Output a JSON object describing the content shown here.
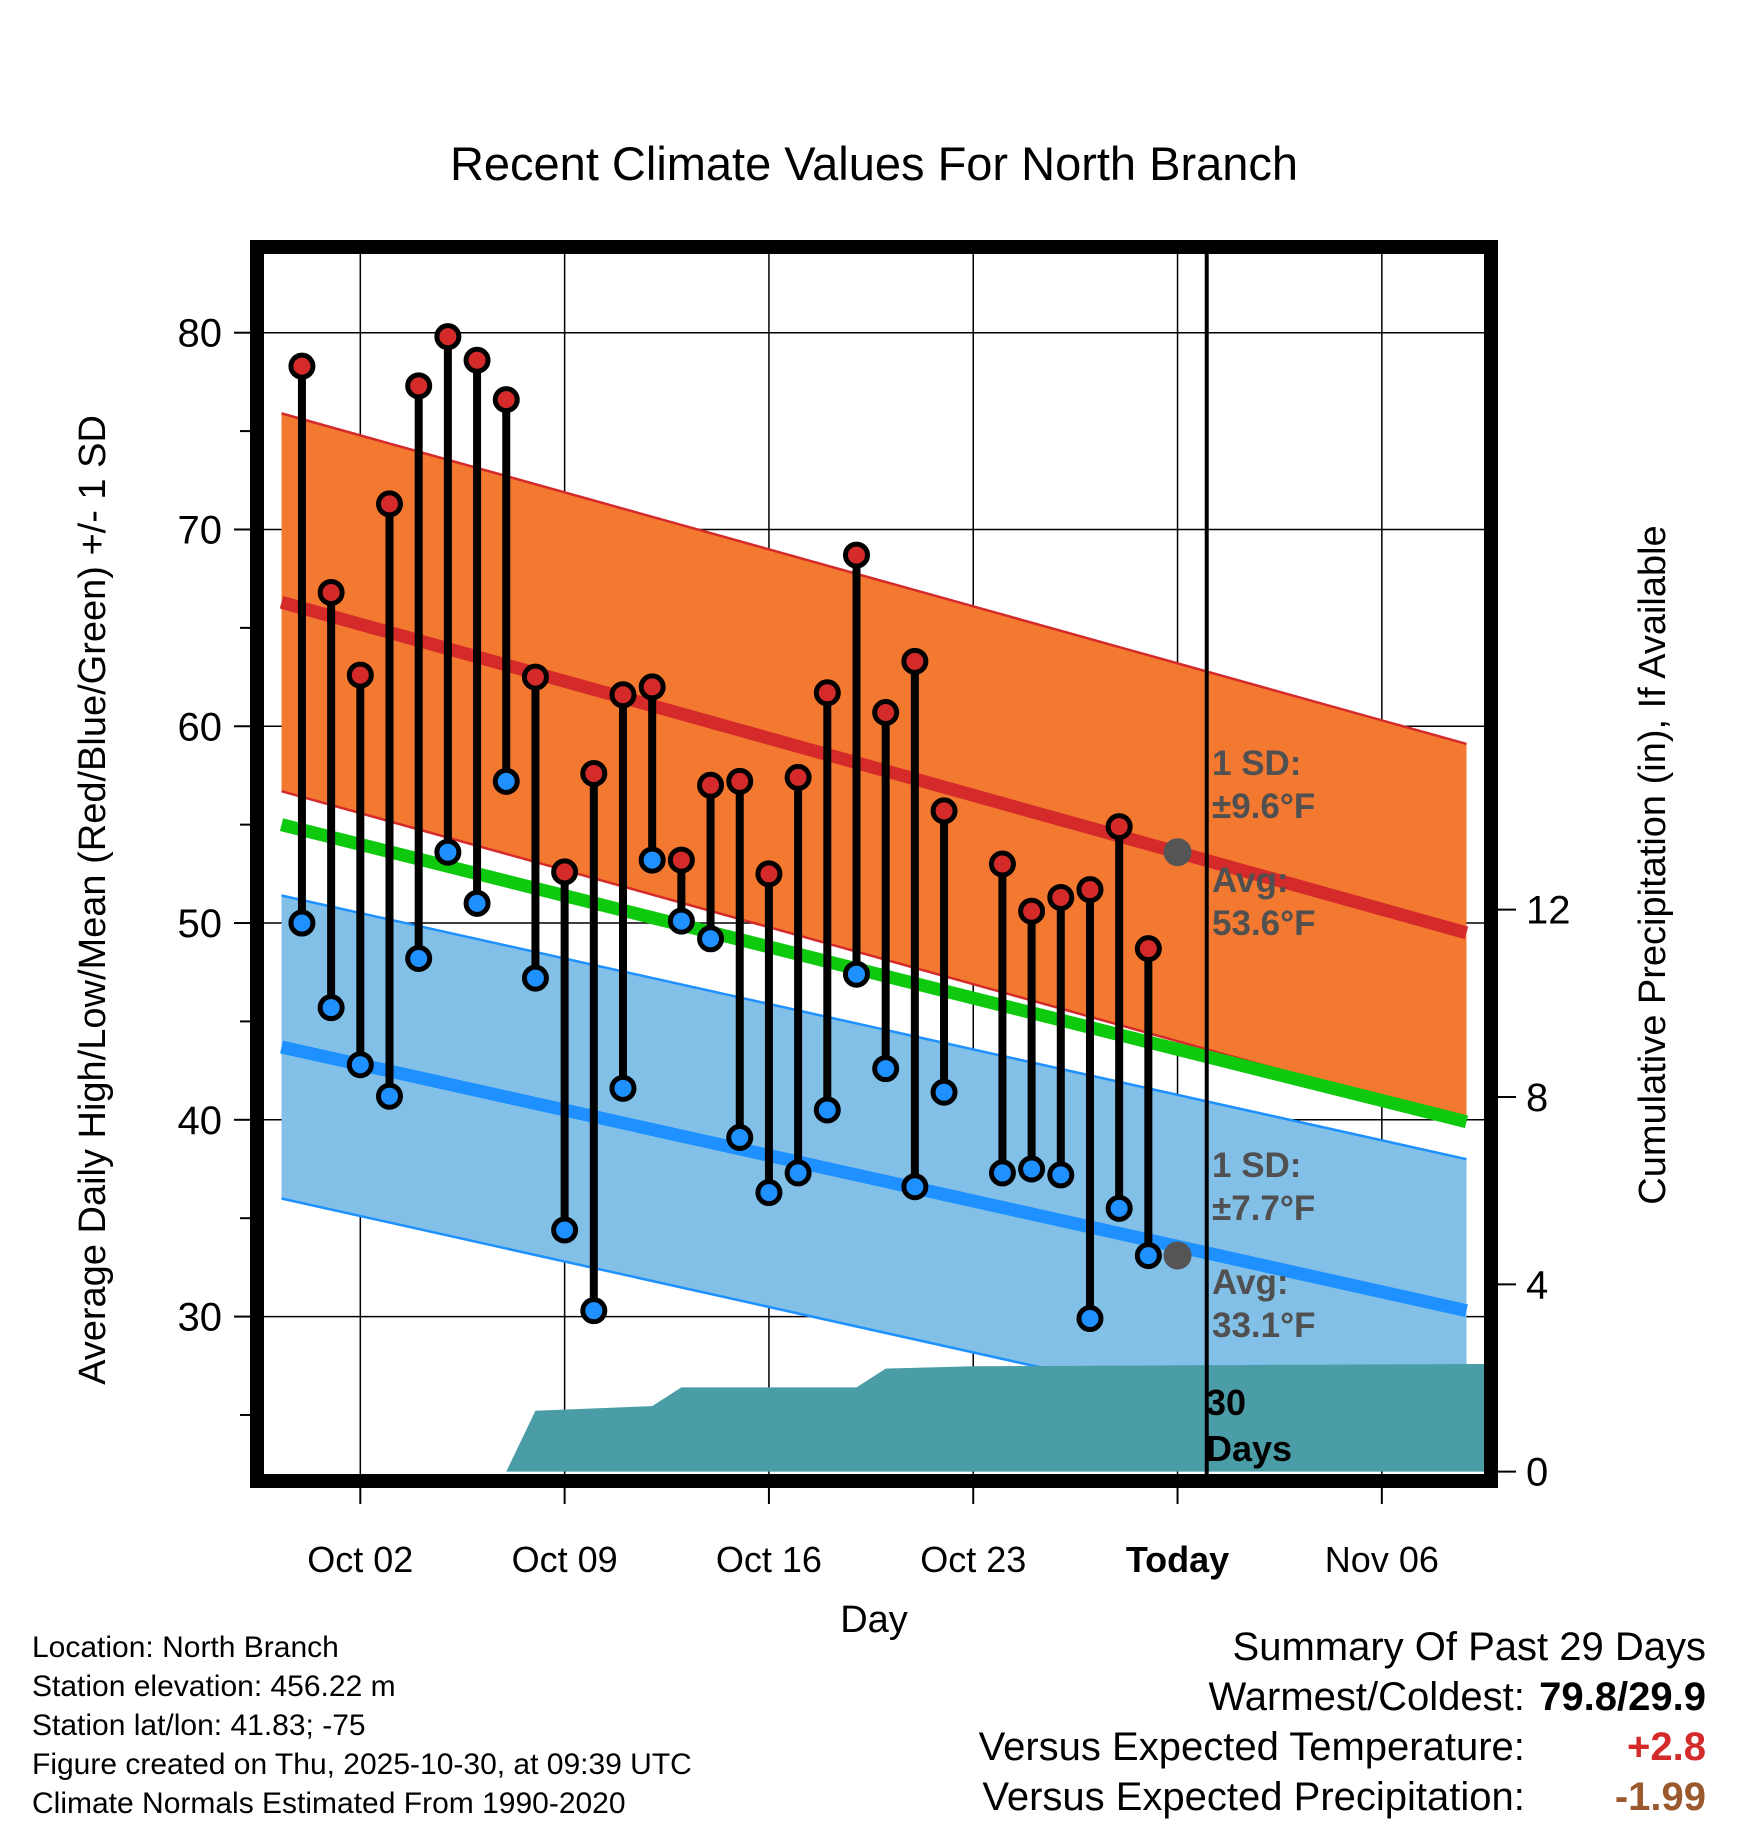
{
  "chart_data": {
    "type": "line",
    "title": "Recent Climate Values For North Branch",
    "xlabel": "Day",
    "ylabel": "Average Daily High/Low/Mean (Red/Blue/Green) +/- 1 SD",
    "y2label": "Cumulative Precipitation (in), If Available",
    "xlim": [
      -3.3,
      38.5
    ],
    "ylim": [
      22,
      84
    ],
    "y2lim": [
      -0.05,
      26
    ],
    "today_index": 29.0,
    "x_ticks": [
      {
        "x": 0,
        "label": "Oct 02"
      },
      {
        "x": 7,
        "label": "Oct 09"
      },
      {
        "x": 14,
        "label": "Oct 16"
      },
      {
        "x": 21,
        "label": "Oct 23"
      },
      {
        "x": 28,
        "label": "Today"
      },
      {
        "x": 35,
        "label": "Nov 06"
      }
    ],
    "y_ticks": [
      30,
      40,
      50,
      60,
      70,
      80
    ],
    "y2_ticks": [
      0,
      4,
      8,
      12
    ],
    "normals": {
      "high_mean": {
        "x": [
          -2.7,
          37.9
        ],
        "values": [
          66.3,
          49.5
        ]
      },
      "high_sd": 9.6,
      "low_mean": {
        "x": [
          -2.7,
          37.9
        ],
        "values": [
          43.7,
          30.3
        ]
      },
      "low_sd": 7.7,
      "mean": {
        "x": [
          -2.7,
          37.9
        ],
        "values": [
          55.0,
          39.9
        ]
      }
    },
    "series": [
      {
        "name": "Daily High",
        "color": "#d42a2a",
        "x": [
          -2,
          -1,
          0,
          1,
          2,
          3,
          4,
          5,
          6,
          7,
          8,
          9,
          10,
          11,
          12,
          13,
          14,
          15,
          16,
          17,
          18,
          19,
          20,
          21,
          22,
          23,
          24,
          25,
          26,
          27
        ],
        "values": [
          78.3,
          66.8,
          62.6,
          71.3,
          77.3,
          79.8,
          78.6,
          76.6,
          62.5,
          52.6,
          57.6,
          61.6,
          62.0,
          53.2,
          57.0,
          57.2,
          52.5,
          57.4,
          61.7,
          68.7,
          60.7,
          63.3,
          55.7,
          null,
          53.0,
          50.6,
          51.3,
          51.7,
          54.9,
          48.7
        ]
      },
      {
        "name": "Daily Low",
        "color": "#1e90ff",
        "x": [
          -2,
          -1,
          0,
          1,
          2,
          3,
          4,
          5,
          6,
          7,
          8,
          9,
          10,
          11,
          12,
          13,
          14,
          15,
          16,
          17,
          18,
          19,
          20,
          21,
          22,
          23,
          24,
          25,
          26,
          27
        ],
        "values": [
          50.0,
          45.7,
          42.8,
          41.2,
          48.2,
          53.6,
          51.0,
          57.2,
          47.2,
          34.4,
          30.3,
          41.6,
          53.2,
          50.1,
          49.2,
          39.1,
          36.3,
          37.3,
          40.5,
          47.4,
          42.6,
          36.6,
          41.4,
          null,
          37.3,
          37.5,
          37.2,
          29.9,
          35.5,
          33.1
        ]
      },
      {
        "name": "Cumulative Precipitation",
        "color": "#4a9ca6",
        "x": [
          5.0,
          6.0,
          10.0,
          11.0,
          17.0,
          18.0,
          21.0,
          38.5
        ],
        "values": [
          0.0,
          1.3,
          1.4,
          1.8,
          1.8,
          2.2,
          2.25,
          2.3
        ]
      }
    ],
    "annotations": {
      "high_sd_label": "1 SD:",
      "high_sd_value": "±9.6°F",
      "high_avg_label": "Avg:",
      "high_avg_value": "53.6°F",
      "low_sd_label": "1 SD:",
      "low_sd_value": "±7.7°F",
      "low_avg_label": "Avg:",
      "low_avg_value": "33.1°F",
      "days_label_line1": "30",
      "days_label_line2": "Days"
    },
    "markers": [
      {
        "x": 28.0,
        "y": 53.6
      },
      {
        "x": 28.0,
        "y": 33.1
      }
    ]
  },
  "metadata": {
    "location": "Location: North Branch",
    "elevation": "Station elevation: 456.22 m",
    "latlon": "Station lat/lon: 41.83; -75",
    "created": "Figure created on Thu, 2025-10-30, at 09:39 UTC",
    "normals": "Climate Normals Estimated From 1990-2020"
  },
  "summary": {
    "title": "Summary Of Past 29 Days",
    "warm_cold_label": "Warmest/Coldest:",
    "warm_cold_value": "79.8/29.9",
    "temp_label": "Versus Expected Temperature:",
    "temp_value": "+2.8",
    "precip_label": "Versus Expected Precipitation:",
    "precip_value": "-1.99"
  },
  "colors": {
    "high_band": "#f47930",
    "high_band_edge": "#d42a2a",
    "high_line": "#d42a2a",
    "low_band": "#82c0e8",
    "low_band_edge": "#1e90ff",
    "low_line": "#1e90ff",
    "mean_line": "#0ec90e",
    "precip": "#4a9ca6",
    "annotation": "#505050"
  }
}
